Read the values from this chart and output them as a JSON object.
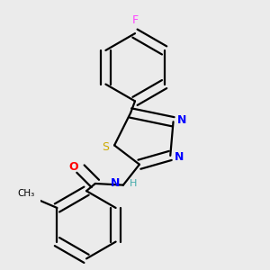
{
  "background_color": "#ebebeb",
  "atom_colors": {
    "F": "#ff44ff",
    "S": "#ccaa00",
    "N": "#0000ff",
    "O": "#ff0000",
    "H": "#44aaaa",
    "C": "#000000"
  },
  "bond_color": "#000000",
  "bond_lw": 1.6,
  "dbo": 0.022
}
